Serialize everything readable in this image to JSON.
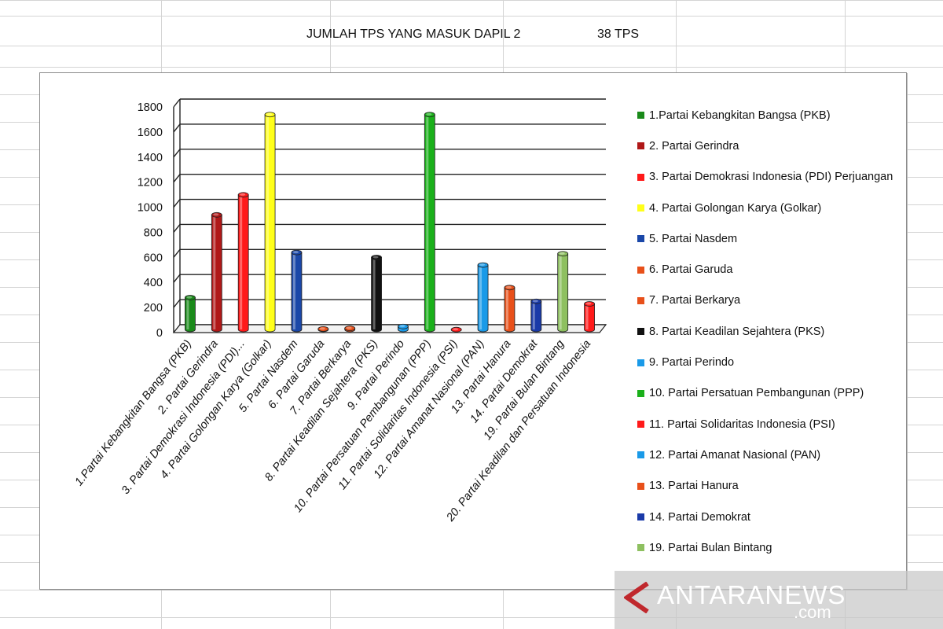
{
  "sheet": {
    "title": "JUMLAH TPS YANG MASUK DAPIL 2",
    "count": "38 TPS"
  },
  "watermark": {
    "text": "ANTARANEWS",
    "sub": ".com"
  },
  "chart_data": {
    "type": "bar",
    "style": "3d-cylinder",
    "ylim": [
      0,
      1800
    ],
    "yticks": [
      0,
      200,
      400,
      600,
      800,
      1000,
      1200,
      1400,
      1600,
      1800
    ],
    "grid": true,
    "legend_position": "right",
    "categories": [
      "1.Partai Kebangkitan Bangsa (PKB)",
      "2. Partai Gerindra",
      "3. Partai Demokrasi Indonesia (PDI)...",
      "4. Partai Golongan Karya (Golkar)",
      "5. Partai Nasdem",
      "6. Partai Garuda",
      "7. Partai Berkarya",
      "8. Partai Keadilan Sejahtera (PKS)",
      "9. Partai Perindo",
      "10. Partai Persatuan Pembangunan (PPP)",
      "11. Partai Solidaritas Indonesia (PSI)",
      "12. Partai Amanat Nasional (PAN)",
      "13. Partai Hanura",
      "14. Partai Demokrat",
      "19. Partai Bulan Bintang",
      "20. Partai Keadilan dan Persatuan Indonesia"
    ],
    "values": [
      260,
      920,
      1080,
      1720,
      620,
      10,
      15,
      580,
      30,
      1720,
      5,
      520,
      340,
      230,
      610,
      210
    ],
    "colors": [
      "#1a8a1a",
      "#b01818",
      "#ff1a1a",
      "#ffff1a",
      "#1a47a8",
      "#e8501a",
      "#e8501a",
      "#111111",
      "#1a9ae8",
      "#1ab01a",
      "#ff1a1a",
      "#1a9ae8",
      "#e8501a",
      "#1a3aa8",
      "#8ec060",
      "#ff1a1a"
    ],
    "legend": [
      "1.Partai Kebangkitan Bangsa (PKB)",
      "2. Partai Gerindra",
      "3. Partai Demokrasi Indonesia (PDI) Perjuangan",
      "4. Partai Golongan Karya (Golkar)",
      "5. Partai Nasdem",
      "6. Partai Garuda",
      "7. Partai Berkarya",
      "8. Partai Keadilan Sejahtera (PKS)",
      "9. Partai Perindo",
      "10. Partai Persatuan Pembangunan (PPP)",
      "11. Partai Solidaritas Indonesia (PSI)",
      "12. Partai Amanat Nasional (PAN)",
      "13. Partai Hanura",
      "14. Partai Demokrat",
      "19. Partai Bulan Bintang"
    ]
  }
}
